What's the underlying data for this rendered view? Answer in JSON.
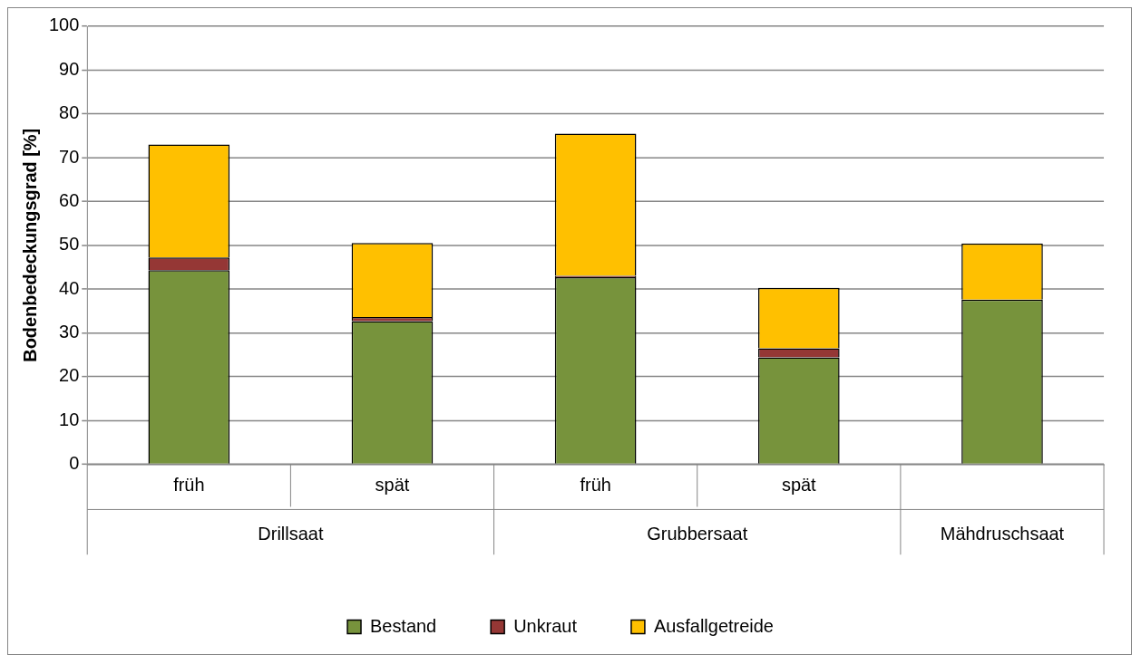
{
  "chart_data": {
    "type": "bar",
    "ylabel": "Bodenbedeckungsgrad [%]",
    "categories": [
      "früh",
      "spät",
      "früh",
      "spät",
      null
    ],
    "series": [
      {
        "name": "Bestand",
        "color": "#77933c",
        "values": [
          44.3,
          32.7,
          42.7,
          24.4,
          37.6
        ]
      },
      {
        "name": "Unkraut",
        "color": "#953735",
        "values": [
          2.9,
          0.9,
          0.3,
          2.1,
          0
        ]
      },
      {
        "name": "Ausfallgetreide",
        "color": "#ffc000",
        "values": [
          25.8,
          16.9,
          32.5,
          13.8,
          12.8
        ]
      }
    ],
    "stacked": true,
    "ylim": [
      0,
      100
    ],
    "yticks": [
      0,
      10,
      20,
      30,
      40,
      50,
      60,
      70,
      80,
      90,
      100
    ],
    "grid": "y",
    "legend": "bottom",
    "annotations": [
      "Drillsaat",
      "Grubbersaat",
      "Mähdruschsaat"
    ]
  }
}
